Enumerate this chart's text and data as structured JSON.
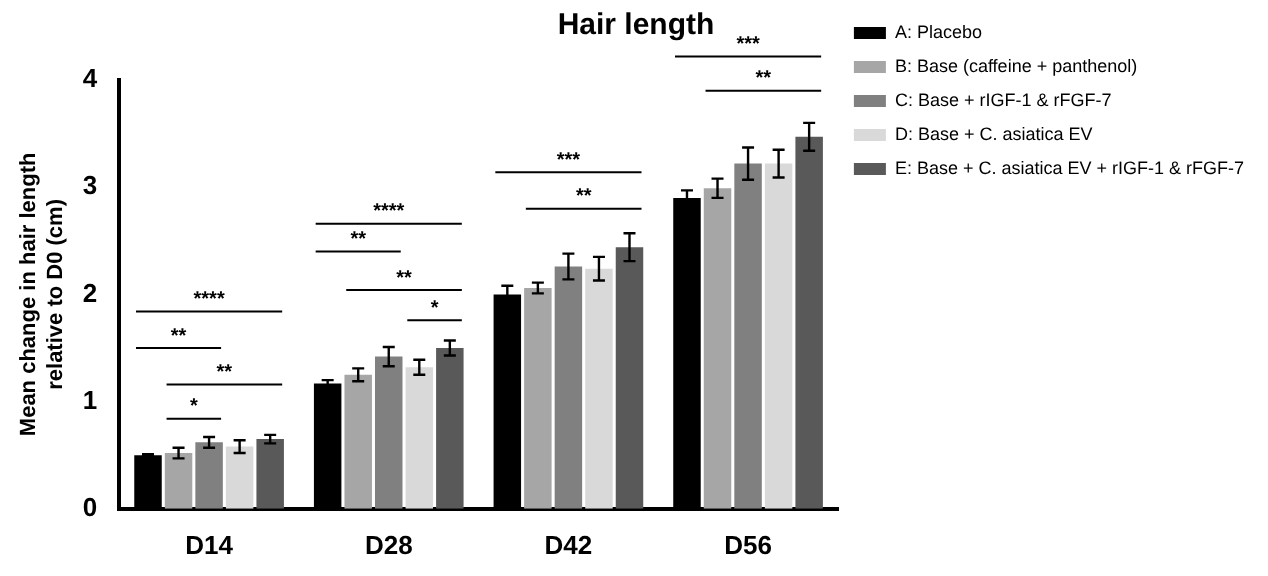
{
  "chart_data": {
    "type": "bar",
    "title": "Hair length",
    "ylabel": "Mean change in hair length relative to D0 (cm)",
    "categories": [
      "D14",
      "D28",
      "D42",
      "D56"
    ],
    "series": [
      {
        "name": "A: Placebo",
        "color": "#000000",
        "values": [
          0.5,
          1.17,
          2.0,
          2.9
        ],
        "errors": [
          0.01,
          0.03,
          0.08,
          0.07
        ]
      },
      {
        "name": "B: Base (caffeine + panthenol)",
        "color": "#a6a6a6",
        "values": [
          0.52,
          1.25,
          2.06,
          2.99
        ],
        "errors": [
          0.05,
          0.06,
          0.05,
          0.09
        ]
      },
      {
        "name": "C: Base + rIGF-1 & rFGF-7",
        "color": "#808080",
        "values": [
          0.62,
          1.42,
          2.26,
          3.22
        ],
        "errors": [
          0.05,
          0.09,
          0.12,
          0.15
        ]
      },
      {
        "name": "D: Base + C. asiatica EV",
        "color": "#d9d9d9",
        "values": [
          0.58,
          1.32,
          2.24,
          3.22
        ],
        "errors": [
          0.06,
          0.07,
          0.11,
          0.13
        ]
      },
      {
        "name": "E: Base + C. asiatica EV + rIGF-1 & rFGF-7",
        "color": "#595959",
        "values": [
          0.65,
          1.5,
          2.44,
          3.47
        ],
        "errors": [
          0.04,
          0.07,
          0.13,
          0.13
        ]
      }
    ],
    "ylim": [
      0,
      4
    ],
    "yticks": [
      0,
      1,
      2,
      3,
      4
    ],
    "grid": false,
    "legend": "right",
    "annotations": [
      "****",
      "**",
      "**",
      "*",
      "****",
      "**",
      "**",
      "*",
      "***",
      "**",
      "***",
      "**"
    ]
  }
}
